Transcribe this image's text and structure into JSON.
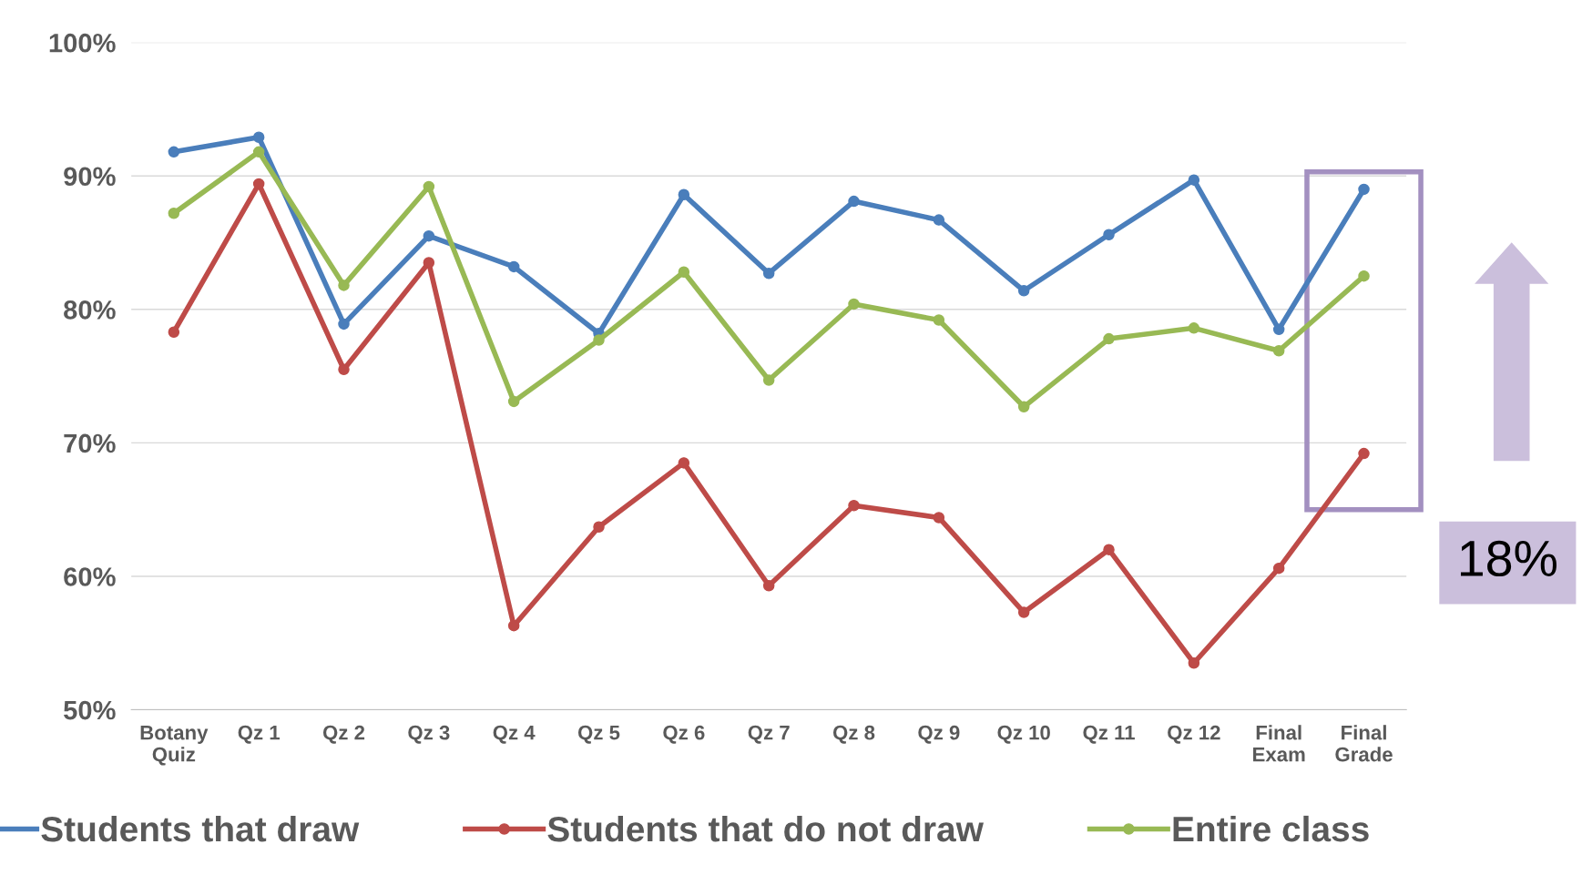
{
  "chart_data": {
    "type": "line",
    "categories": [
      "Botany\nQuiz",
      "Qz 1",
      "Qz 2",
      "Qz 3",
      "Qz 4",
      "Qz 5",
      "Qz 6",
      "Qz 7",
      "Qz 8",
      "Qz 9",
      "Qz 10",
      "Qz 11",
      "Qz 12",
      "Final\nExam",
      "Final\nGrade"
    ],
    "series": [
      {
        "name": "Students that draw",
        "color": "#4a7ebb",
        "values": [
          91.8,
          92.9,
          78.9,
          85.5,
          83.2,
          78.2,
          88.6,
          82.7,
          88.1,
          86.7,
          81.4,
          85.6,
          89.7,
          78.5,
          89.0
        ]
      },
      {
        "name": "Students that do not draw",
        "color": "#be4b48",
        "values": [
          78.3,
          89.4,
          75.5,
          83.5,
          56.3,
          63.7,
          68.5,
          59.3,
          65.3,
          64.4,
          57.3,
          62.0,
          53.5,
          60.6,
          69.2
        ]
      },
      {
        "name": "Entire class",
        "color": "#98b954",
        "values": [
          87.2,
          91.8,
          81.8,
          89.2,
          73.1,
          77.7,
          82.8,
          74.7,
          80.4,
          79.2,
          72.7,
          77.8,
          78.6,
          76.9,
          82.5
        ]
      }
    ],
    "ylim": [
      50,
      100
    ],
    "yticks": [
      {
        "value": 50,
        "label": "50%"
      },
      {
        "value": 60,
        "label": "60%"
      },
      {
        "value": 70,
        "label": "70%"
      },
      {
        "value": 80,
        "label": "80%"
      },
      {
        "value": 90,
        "label": "90%"
      },
      {
        "value": 100,
        "label": "100%"
      }
    ],
    "grid": "y",
    "legend": "bottom",
    "marker": "circle",
    "line_style": "solid",
    "annotations": [
      "18%"
    ]
  }
}
